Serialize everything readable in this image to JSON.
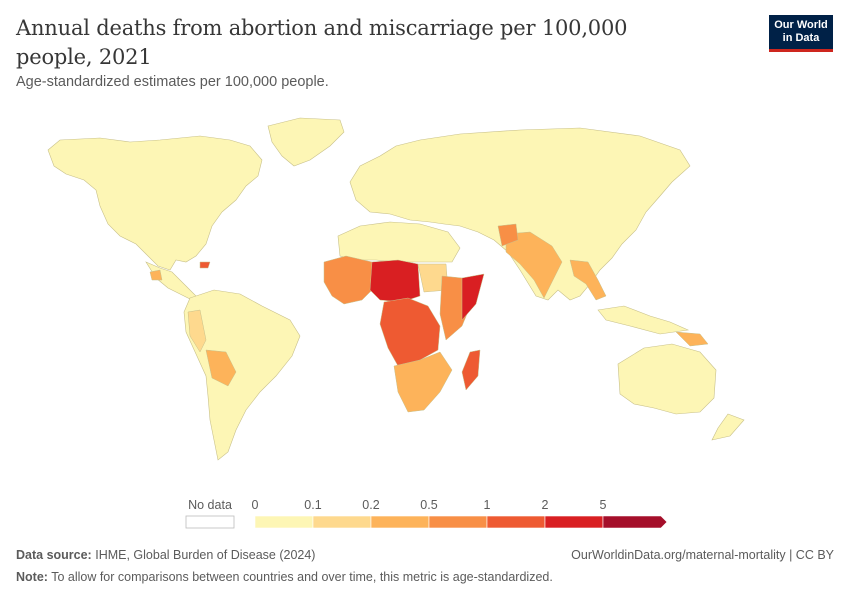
{
  "header": {
    "title": "Annual deaths from abortion and miscarriage per 100,000 people, 2021",
    "subtitle": "Age-standardized estimates per 100,000 people."
  },
  "logo": {
    "line1": "Our World",
    "line2": "in Data"
  },
  "legend": {
    "no_data_label": "No data",
    "bins": [
      "0",
      "0.1",
      "0.2",
      "0.5",
      "1",
      "2",
      "5"
    ],
    "colors": [
      "#fdf6b5",
      "#fed98e",
      "#fdb35a",
      "#f88f46",
      "#ee5a32",
      "#d91f22",
      "#a50f2a"
    ]
  },
  "footer": {
    "source_label": "Data source:",
    "source_text": "IHME, Global Burden of Disease (2024)",
    "url_text": "OurWorldinData.org/maternal-mortality | CC BY",
    "note_label": "Note:",
    "note_text": "To allow for comparisons between countries and over time, this metric is age-standardized."
  }
}
